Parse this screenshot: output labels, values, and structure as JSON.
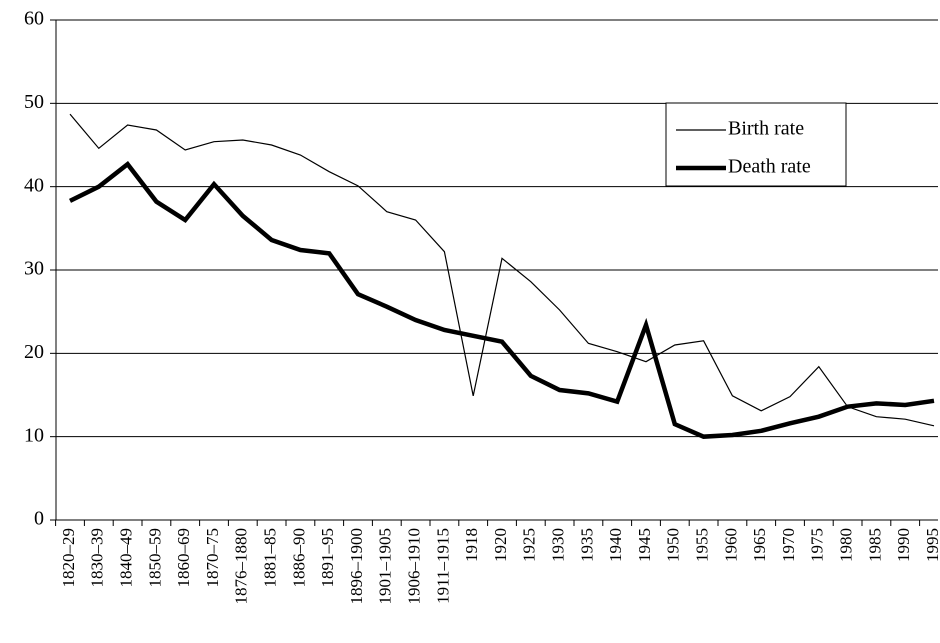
{
  "chart_data": {
    "type": "line",
    "categories": [
      "1820–29",
      "1830–39",
      "1840–49",
      "1850–59",
      "1860–69",
      "1870–75",
      "1876–1880",
      "1881–85",
      "1886–90",
      "1891–95",
      "1896–1900",
      "1901–1905",
      "1906–1910",
      "1911–1915",
      "1918",
      "1920",
      "1925",
      "1930",
      "1935",
      "1940",
      "1945",
      "1950",
      "1955",
      "1960",
      "1965",
      "1970",
      "1975",
      "1980",
      "1985",
      "1990",
      "1995"
    ],
    "series": [
      {
        "name": "Birth rate",
        "color": "#000000",
        "line_width": 1.2,
        "values": [
          48.7,
          44.6,
          47.4,
          46.8,
          44.4,
          45.4,
          45.6,
          45.0,
          43.8,
          41.8,
          40.1,
          37.0,
          36.0,
          32.2,
          14.9,
          31.4,
          28.6,
          25.2,
          21.2,
          20.2,
          19.0,
          21.0,
          21.5,
          14.9,
          13.1,
          14.8,
          18.4,
          13.6,
          12.4,
          12.1,
          11.3
        ]
      },
      {
        "name": "Death rate",
        "color": "#000000",
        "line_width": 4.5,
        "values": [
          38.3,
          40.0,
          42.7,
          38.2,
          36.0,
          40.3,
          36.5,
          33.6,
          32.4,
          32.0,
          27.1,
          25.6,
          24.0,
          22.8,
          22.1,
          21.4,
          17.3,
          15.6,
          15.2,
          14.2,
          23.4,
          11.5,
          10.0,
          10.2,
          10.7,
          11.6,
          12.4,
          13.6,
          14.0,
          13.8,
          14.3
        ]
      }
    ],
    "ylim": [
      0,
      60
    ],
    "yticks": [
      0,
      10,
      20,
      30,
      40,
      50,
      60
    ],
    "grid": true,
    "legend": "upper right"
  }
}
